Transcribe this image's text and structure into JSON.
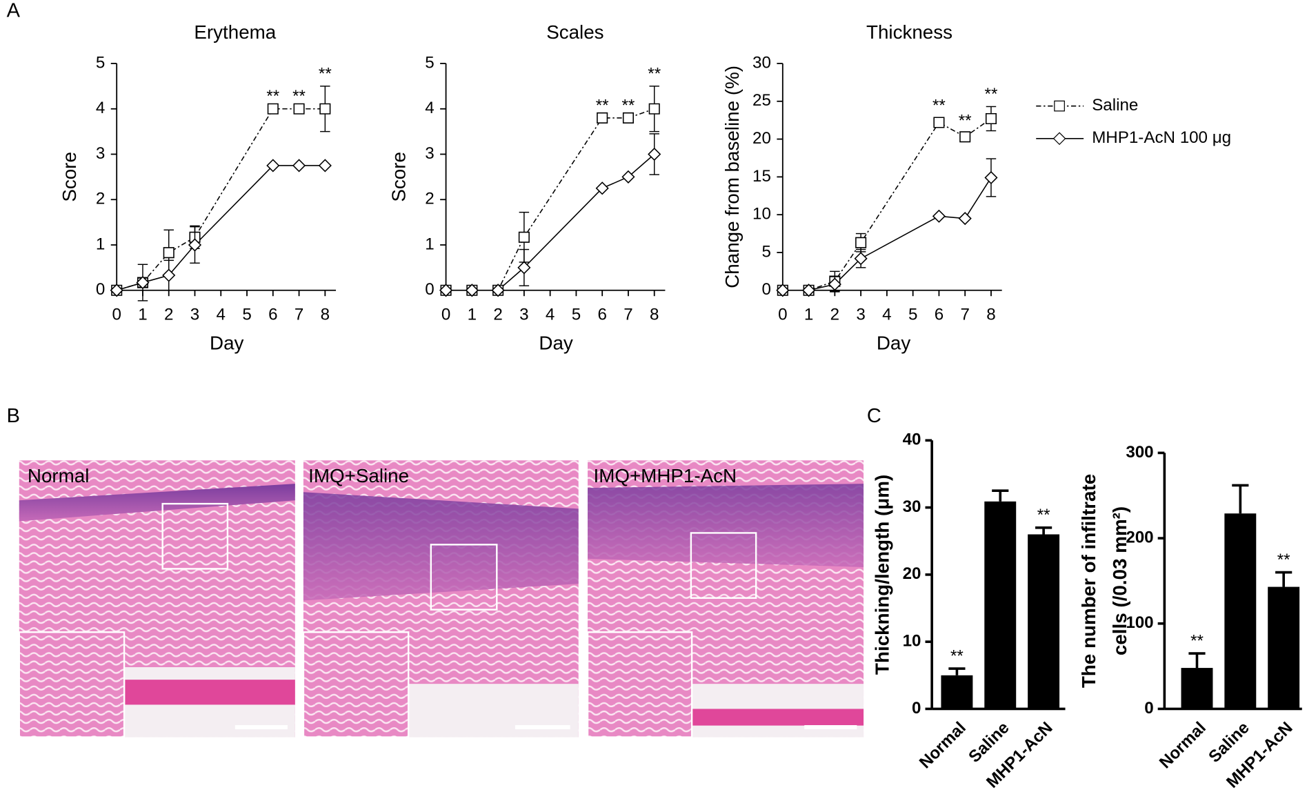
{
  "panels": [
    "A",
    "B",
    "C"
  ],
  "histology": [
    {
      "label": "Normal"
    },
    {
      "label": "IMQ+Saline"
    },
    {
      "label": "IMQ+MHP1-AcN"
    }
  ],
  "chart_data": [
    {
      "type": "line",
      "title": "Erythema",
      "xlabel": "Day",
      "ylabel": "Score",
      "x": [
        0,
        1,
        2,
        3,
        6,
        7,
        8
      ],
      "xlim": [
        0,
        8
      ],
      "xticks": [
        0,
        1,
        2,
        3,
        4,
        5,
        6,
        7,
        8
      ],
      "ylim": [
        0,
        5
      ],
      "yticks": [
        0,
        1,
        2,
        3,
        4,
        5
      ],
      "series": [
        {
          "color": "#000000",
          "line_style": "dashed",
          "marker": "square",
          "values": [
            0,
            0.17,
            0.83,
            1.17,
            4,
            4,
            4
          ],
          "errors": [
            0,
            0.4,
            0.5,
            0.25,
            0,
            0,
            0.5
          ]
        },
        {
          "color": "#000000",
          "line_style": "solid",
          "marker": "diamond",
          "values": [
            0,
            0.17,
            0.33,
            1.0,
            2.75,
            2.75,
            2.75
          ],
          "errors": [
            0,
            0.1,
            0.33,
            0.4,
            0,
            0,
            0
          ]
        }
      ],
      "annotations": [
        {
          "x": 6,
          "text": "**"
        },
        {
          "x": 7,
          "text": "**"
        },
        {
          "x": 8,
          "text": "**"
        }
      ]
    },
    {
      "type": "line",
      "title": "Scales",
      "xlabel": "Day",
      "ylabel": "Score",
      "x": [
        0,
        1,
        2,
        3,
        6,
        7,
        8
      ],
      "xlim": [
        0,
        8
      ],
      "xticks": [
        0,
        1,
        2,
        3,
        4,
        5,
        6,
        7,
        8
      ],
      "ylim": [
        0,
        5
      ],
      "yticks": [
        0,
        1,
        2,
        3,
        4,
        5
      ],
      "series": [
        {
          "color": "#000000",
          "line_style": "dashed",
          "marker": "square",
          "values": [
            0,
            0,
            0,
            1.17,
            3.8,
            3.8,
            4
          ],
          "errors": [
            0,
            0,
            0,
            0.55,
            0,
            0,
            0.5
          ]
        },
        {
          "color": "#000000",
          "line_style": "solid",
          "marker": "diamond",
          "values": [
            0,
            0,
            0,
            0.5,
            2.25,
            2.5,
            3.0
          ],
          "errors": [
            0,
            0,
            0,
            0.4,
            0,
            0,
            0.45
          ]
        }
      ],
      "annotations": [
        {
          "x": 6,
          "text": "**"
        },
        {
          "x": 7,
          "text": "**"
        },
        {
          "x": 8,
          "text": "**"
        }
      ]
    },
    {
      "type": "line",
      "title": "Thickness",
      "xlabel": "Day",
      "ylabel": "Change from baseline (%)",
      "x": [
        0,
        1,
        2,
        3,
        6,
        7,
        8
      ],
      "xlim": [
        0,
        8
      ],
      "xticks": [
        0,
        1,
        2,
        3,
        4,
        5,
        6,
        7,
        8
      ],
      "ylim": [
        0,
        30
      ],
      "yticks": [
        0,
        5,
        10,
        15,
        20,
        25,
        30
      ],
      "legend": "outside-right",
      "series": [
        {
          "name": "Saline",
          "color": "#000000",
          "line_style": "dashed",
          "marker": "square",
          "values": [
            0,
            0,
            1.2,
            6.3,
            22.2,
            20.3,
            22.7
          ],
          "errors": [
            0,
            0,
            1.3,
            1.2,
            0.6,
            0.5,
            1.6
          ]
        },
        {
          "name": "MHP1-AcN 100 μg",
          "color": "#000000",
          "line_style": "solid",
          "marker": "diamond",
          "values": [
            0,
            0,
            0.8,
            4.2,
            9.8,
            9.5,
            14.9
          ],
          "errors": [
            0,
            0,
            1,
            1.2,
            0,
            0,
            2.5
          ]
        }
      ],
      "annotations": [
        {
          "x": 6,
          "text": "**"
        },
        {
          "x": 7,
          "text": "**"
        },
        {
          "x": 8,
          "text": "**"
        }
      ]
    },
    {
      "type": "bar",
      "ylabel": "Thickning/length (μm)",
      "categories": [
        "Normal",
        "Saline",
        "MHP1-AcN"
      ],
      "values": [
        5.0,
        30.9,
        26.0
      ],
      "errors": [
        1.0,
        1.6,
        1.0
      ],
      "color": "#000000",
      "ylim": [
        0,
        40
      ],
      "yticks": [
        0,
        10,
        20,
        30,
        40
      ],
      "annotations": [
        "**",
        null,
        "**"
      ]
    },
    {
      "type": "bar",
      "ylabel": [
        "The number of infiltrate",
        "cells (/0.03  mm²)"
      ],
      "categories": [
        "Normal",
        "Saline",
        "MHP1-AcN"
      ],
      "values": [
        48,
        229,
        143
      ],
      "errors": [
        17,
        33,
        17
      ],
      "color": "#000000",
      "ylim": [
        0,
        300
      ],
      "yticks": [
        0,
        100,
        200,
        300
      ],
      "annotations": [
        "**",
        null,
        "**"
      ]
    }
  ]
}
